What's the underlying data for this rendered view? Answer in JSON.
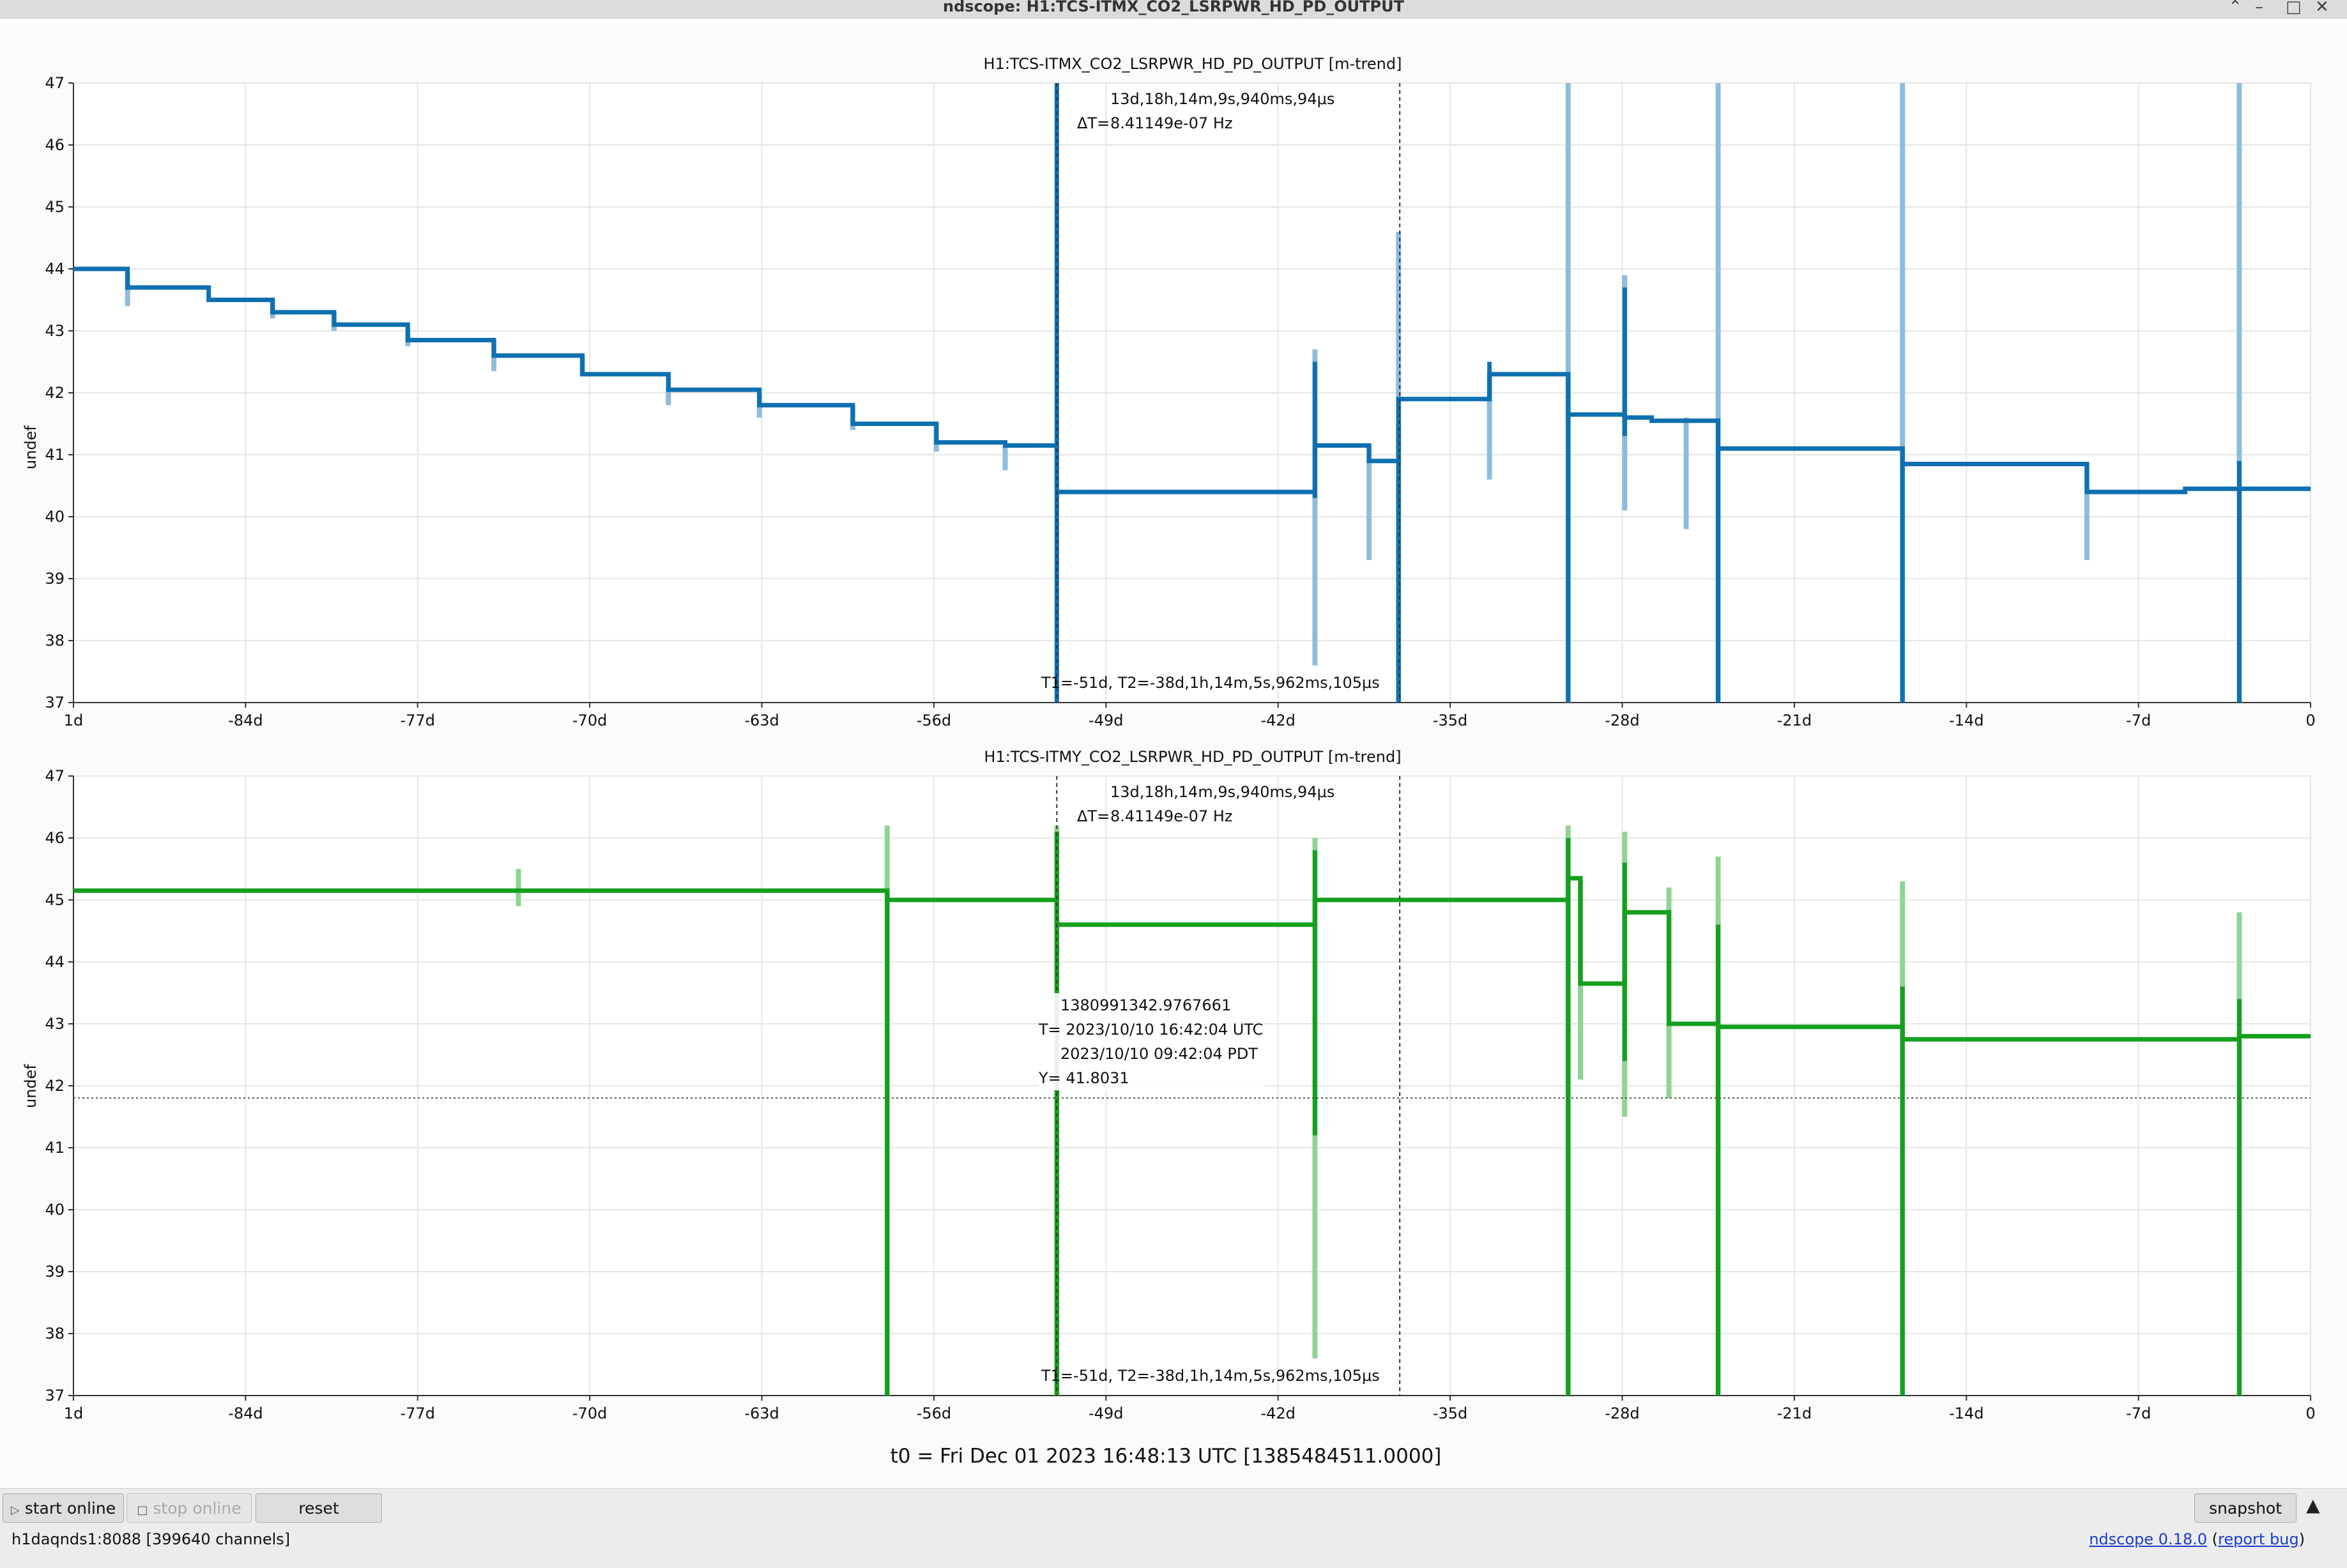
{
  "window": {
    "title": "ndscope: H1:TCS-ITMX_CO2_LSRPWR_HD_PD_OUTPUT",
    "controls": [
      "⌃",
      "–",
      "□",
      "✕"
    ]
  },
  "plots": [
    {
      "title": "H1:TCS-ITMX_CO2_LSRPWR_HD_PD_OUTPUT [m-trend]",
      "ylabel": "undef",
      "color": "#0f70b0",
      "light_color": "#8fbcdc",
      "delta": {
        "label": "ΔT=",
        "line1": "13d,18h,14m,9s,940ms,94μs",
        "line2": "8.41149e-07 Hz"
      },
      "cursor_text": "T1=-51d,  T2=-38d,1h,14m,5s,962ms,105μs"
    },
    {
      "title": "H1:TCS-ITMY_CO2_LSRPWR_HD_PD_OUTPUT [m-trend]",
      "ylabel": "undef",
      "color": "#14a01e",
      "light_color": "#8fd494",
      "delta": {
        "label": "ΔT=",
        "line1": "13d,18h,14m,9s,940ms,94μs",
        "line2": "8.41149e-07 Hz"
      },
      "cursor_text": "T1=-51d,  T2=-38d,1h,14m,5s,962ms,105μs",
      "readout": {
        "gps": "1380991342.9767661",
        "utc": "T= 2023/10/10 16:42:04 UTC",
        "pdt": "2023/10/10 09:42:04 PDT",
        "y": "Y= 41.8031"
      }
    }
  ],
  "chart_data": [
    {
      "type": "line",
      "title": "H1:TCS-ITMX_CO2_LSRPWR_HD_PD_OUTPUT [m-trend]",
      "ylabel": "undef",
      "xlabel": "",
      "xlim": [
        -91,
        0
      ],
      "ylim": [
        37,
        47
      ],
      "yticks": [
        "37",
        "38",
        "39",
        "40",
        "41",
        "42",
        "43",
        "44",
        "45",
        "46",
        "47"
      ],
      "xticks": [
        {
          "v": -91,
          "t": "1d"
        },
        {
          "v": -84,
          "t": "-84d"
        },
        {
          "v": -77,
          "t": "-77d"
        },
        {
          "v": -70,
          "t": "-70d"
        },
        {
          "v": -63,
          "t": "-63d"
        },
        {
          "v": -56,
          "t": "-56d"
        },
        {
          "v": -49,
          "t": "-49d"
        },
        {
          "v": -42,
          "t": "-42d"
        },
        {
          "v": -35,
          "t": "-35d"
        },
        {
          "v": -28,
          "t": "-28d"
        },
        {
          "v": -21,
          "t": "-21d"
        },
        {
          "v": -14,
          "t": "-14d"
        },
        {
          "v": -7,
          "t": "-7d"
        },
        {
          "v": 0,
          "t": "0"
        }
      ],
      "grid": true,
      "cursors": {
        "t1": -51,
        "t2": -37.05
      },
      "series": [
        {
          "x": [
            -91,
            -88.8,
            -88.8,
            -85.5,
            -85.5,
            -82.9,
            -82.9,
            -80.4,
            -80.4,
            -77.4,
            -77.4,
            -73.9,
            -73.9,
            -70.3,
            -70.3,
            -66.8,
            -66.8,
            -63.1,
            -63.1,
            -59.3,
            -59.3,
            -55.9,
            -55.9,
            -53.1,
            -53.1,
            -51,
            -51,
            -40.5,
            -40.5,
            -38.3,
            -38.3,
            -37.1,
            -37.1,
            -33.4,
            -33.4,
            -30.2,
            -30.2,
            -27.9,
            -27.9,
            -26.8,
            -26.8,
            -24.1,
            -24.1,
            -23.6,
            -23.6,
            -16.6,
            -16.6,
            -9.1,
            -9.1,
            -5.1,
            -5.1,
            -2.9,
            -2.9,
            0
          ],
          "y": [
            44.0,
            44.0,
            43.7,
            43.7,
            43.5,
            43.5,
            43.3,
            43.3,
            43.1,
            43.1,
            42.85,
            42.85,
            42.6,
            42.6,
            42.3,
            42.3,
            42.05,
            42.05,
            41.8,
            41.8,
            41.5,
            41.5,
            41.2,
            41.2,
            41.15,
            41.15,
            40.4,
            40.4,
            41.15,
            41.15,
            40.9,
            40.9,
            41.9,
            41.9,
            42.3,
            42.3,
            41.65,
            41.65,
            41.6,
            41.6,
            41.55,
            41.55,
            41.1,
            41.1,
            41.1,
            41.1,
            40.85,
            40.85,
            40.4,
            40.4,
            40.45,
            40.45,
            40.45,
            40.45
          ]
        },
        {
          "spikes": [
            [
              -88.8,
              43.4,
              43.95
            ],
            [
              -82.9,
              43.2,
              43.5
            ],
            [
              -80.4,
              43.0,
              43.3
            ],
            [
              -77.4,
              42.75,
              43.05
            ],
            [
              -73.9,
              42.35,
              42.85
            ],
            [
              -70.3,
              42.3,
              42.6
            ],
            [
              -66.8,
              41.8,
              42.3
            ],
            [
              -63.1,
              41.6,
              42.05
            ],
            [
              -59.3,
              41.4,
              41.8
            ],
            [
              -55.9,
              41.05,
              41.5
            ],
            [
              -53.1,
              40.75,
              41.15
            ],
            [
              -40.5,
              37.6,
              42.7
            ],
            [
              -38.3,
              39.3,
              41.15
            ],
            [
              -37.1,
              37,
              44.6
            ],
            [
              -33.4,
              40.6,
              42.3
            ],
            [
              -30.2,
              37,
              47
            ],
            [
              -27.9,
              40.1,
              43.9
            ],
            [
              -25.4,
              39.8,
              41.6
            ],
            [
              -24.1,
              37,
              47
            ],
            [
              -16.6,
              37,
              47
            ],
            [
              -9.1,
              39.3,
              40.85
            ],
            [
              -2.9,
              37,
              47
            ]
          ]
        },
        {
          "spikes": [
            [
              -51,
              37,
              47
            ],
            [
              -40.5,
              40.3,
              42.5
            ],
            [
              -37.1,
              37,
              41.5
            ],
            [
              -33.4,
              41.9,
              42.5
            ],
            [
              -30.2,
              37,
              42.3
            ],
            [
              -27.9,
              41.3,
              43.7
            ],
            [
              -24.1,
              37,
              41.1
            ],
            [
              -16.6,
              37,
              41.1
            ],
            [
              -2.9,
              37,
              40.9
            ]
          ]
        }
      ]
    },
    {
      "type": "line",
      "title": "H1:TCS-ITMY_CO2_LSRPWR_HD_PD_OUTPUT [m-trend]",
      "ylabel": "undef",
      "xlabel": "",
      "xlim": [
        -91,
        0
      ],
      "ylim": [
        37,
        47
      ],
      "yticks": [
        "37",
        "38",
        "39",
        "40",
        "41",
        "42",
        "43",
        "44",
        "45",
        "46",
        "47"
      ],
      "xticks": [
        {
          "v": -91,
          "t": "1d"
        },
        {
          "v": -84,
          "t": "-84d"
        },
        {
          "v": -77,
          "t": "-77d"
        },
        {
          "v": -70,
          "t": "-70d"
        },
        {
          "v": -63,
          "t": "-63d"
        },
        {
          "v": -56,
          "t": "-56d"
        },
        {
          "v": -49,
          "t": "-49d"
        },
        {
          "v": -42,
          "t": "-42d"
        },
        {
          "v": -35,
          "t": "-35d"
        },
        {
          "v": -28,
          "t": "-28d"
        },
        {
          "v": -21,
          "t": "-21d"
        },
        {
          "v": -14,
          "t": "-14d"
        },
        {
          "v": -7,
          "t": "-7d"
        },
        {
          "v": 0,
          "t": "0"
        }
      ],
      "grid": true,
      "cursors": {
        "t1": -51,
        "t2": -37.05,
        "hline": 41.8031
      },
      "series": [
        {
          "x": [
            -91,
            -57.9,
            -57.9,
            -51,
            -51,
            -40.5,
            -40.5,
            -30.2,
            -30.2,
            -29.7,
            -29.7,
            -27.9,
            -27.9,
            -26.1,
            -26.1,
            -24.1,
            -24.1,
            -16.6,
            -16.6,
            -2.9,
            -2.9,
            0
          ],
          "y": [
            45.15,
            45.15,
            45.0,
            45.0,
            44.6,
            44.6,
            45.0,
            45.0,
            45.35,
            45.35,
            43.65,
            43.65,
            44.8,
            44.8,
            43.0,
            43.0,
            42.95,
            42.95,
            42.75,
            42.75,
            42.8,
            42.8
          ]
        },
        {
          "spikes": [
            [
              -72.9,
              44.9,
              45.5
            ],
            [
              -57.9,
              37,
              46.2
            ],
            [
              -51,
              37,
              46.2
            ],
            [
              -40.5,
              37.6,
              46
            ],
            [
              -30.2,
              37,
              46.2
            ],
            [
              -29.7,
              42.1,
              45.3
            ],
            [
              -27.9,
              41.5,
              46.1
            ],
            [
              -26.1,
              41.8,
              45.2
            ],
            [
              -24.1,
              37,
              45.7
            ],
            [
              -16.6,
              37,
              45.3
            ],
            [
              -2.9,
              37,
              44.8
            ]
          ]
        },
        {
          "spikes": [
            [
              -57.9,
              37,
              45.1
            ],
            [
              -51,
              37,
              46.1
            ],
            [
              -40.5,
              41.2,
              45.8
            ],
            [
              -30.2,
              37,
              46
            ],
            [
              -27.9,
              42.4,
              45.6
            ],
            [
              -24.1,
              37,
              44.6
            ],
            [
              -16.6,
              37,
              43.6
            ],
            [
              -2.9,
              37,
              43.4
            ]
          ]
        }
      ]
    }
  ],
  "t0": "t0 = Fri Dec 01 2023 16:48:13 UTC [1385484511.0000]",
  "toolbar": {
    "start_online": "start online",
    "stop_online": "stop online",
    "reset": "reset",
    "snapshot": "snapshot"
  },
  "status": {
    "server": "h1daqnds1:8088  [399640 channels]",
    "version_link": "ndscope 0.18.0",
    "report_link": "report bug"
  }
}
